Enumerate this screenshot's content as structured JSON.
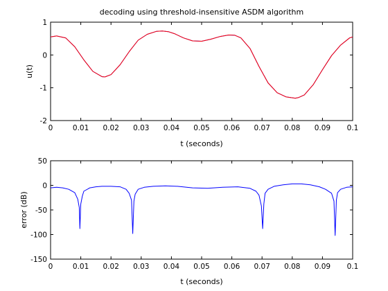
{
  "chart_data": [
    {
      "type": "line",
      "title": "decoding using threshold-insensitive ASDM algorithm",
      "xlabel": "t (seconds)",
      "ylabel": "u(t)",
      "xlim": [
        0,
        0.1
      ],
      "ylim": [
        -2,
        1
      ],
      "xticks": [
        "0",
        "0.01",
        "0.02",
        "0.03",
        "0.04",
        "0.05",
        "0.06",
        "0.07",
        "0.08",
        "0.09",
        "0.1"
      ],
      "yticks": [
        "-2",
        "-1",
        "0",
        "1"
      ],
      "grid": false,
      "series": [
        {
          "color": "#0000ff",
          "x": [
            0,
            0.002,
            0.005,
            0.008,
            0.011,
            0.014,
            0.017,
            0.018,
            0.02,
            0.023,
            0.026,
            0.029,
            0.032,
            0.035,
            0.037,
            0.039,
            0.041,
            0.044,
            0.047,
            0.05,
            0.053,
            0.056,
            0.059,
            0.061,
            0.063,
            0.066,
            0.069,
            0.072,
            0.075,
            0.078,
            0.081,
            0.082,
            0.084,
            0.087,
            0.09,
            0.093,
            0.096,
            0.099,
            0.1
          ],
          "y": [
            0.55,
            0.58,
            0.52,
            0.25,
            -0.15,
            -0.5,
            -0.66,
            -0.67,
            -0.6,
            -0.3,
            0.1,
            0.45,
            0.63,
            0.72,
            0.73,
            0.71,
            0.65,
            0.52,
            0.43,
            0.42,
            0.48,
            0.56,
            0.61,
            0.6,
            0.52,
            0.2,
            -0.35,
            -0.85,
            -1.15,
            -1.28,
            -1.32,
            -1.3,
            -1.22,
            -0.9,
            -0.45,
            -0.02,
            0.3,
            0.52,
            0.55
          ]
        },
        {
          "color": "#ff0000",
          "x": [
            0,
            0.002,
            0.005,
            0.008,
            0.011,
            0.014,
            0.017,
            0.018,
            0.02,
            0.023,
            0.026,
            0.029,
            0.032,
            0.035,
            0.037,
            0.039,
            0.041,
            0.044,
            0.047,
            0.05,
            0.053,
            0.056,
            0.059,
            0.061,
            0.063,
            0.066,
            0.069,
            0.072,
            0.075,
            0.078,
            0.081,
            0.082,
            0.084,
            0.087,
            0.09,
            0.093,
            0.096,
            0.099,
            0.1
          ],
          "y": [
            0.55,
            0.58,
            0.52,
            0.25,
            -0.15,
            -0.5,
            -0.66,
            -0.67,
            -0.6,
            -0.3,
            0.1,
            0.45,
            0.63,
            0.72,
            0.73,
            0.71,
            0.65,
            0.52,
            0.43,
            0.42,
            0.48,
            0.56,
            0.61,
            0.6,
            0.52,
            0.2,
            -0.35,
            -0.85,
            -1.15,
            -1.28,
            -1.32,
            -1.3,
            -1.22,
            -0.9,
            -0.45,
            -0.02,
            0.3,
            0.52,
            0.55
          ]
        }
      ]
    },
    {
      "type": "line",
      "title": "",
      "xlabel": "t (seconds)",
      "ylabel": "error (dB)",
      "xlim": [
        0,
        0.1
      ],
      "ylim": [
        -150,
        50
      ],
      "xticks": [
        "0",
        "0.01",
        "0.02",
        "0.03",
        "0.04",
        "0.05",
        "0.06",
        "0.07",
        "0.08",
        "0.09",
        "0.1"
      ],
      "yticks": [
        "-150",
        "-100",
        "-50",
        "0",
        "50"
      ],
      "grid": false,
      "series": [
        {
          "color": "#0000ff",
          "x": [
            0,
            0.002,
            0.004,
            0.006,
            0.008,
            0.009,
            0.0095,
            0.0097,
            0.01,
            0.0105,
            0.011,
            0.013,
            0.015,
            0.017,
            0.02,
            0.023,
            0.025,
            0.026,
            0.0268,
            0.0272,
            0.0276,
            0.028,
            0.029,
            0.031,
            0.034,
            0.038,
            0.042,
            0.047,
            0.052,
            0.057,
            0.062,
            0.066,
            0.068,
            0.069,
            0.0698,
            0.0702,
            0.0706,
            0.071,
            0.072,
            0.074,
            0.077,
            0.08,
            0.083,
            0.086,
            0.089,
            0.091,
            0.093,
            0.0938,
            0.0942,
            0.0946,
            0.095,
            0.096,
            0.098,
            0.1
          ],
          "y": [
            -5,
            -4,
            -5,
            -8,
            -15,
            -28,
            -45,
            -88,
            -38,
            -22,
            -12,
            -5,
            -3,
            -2,
            -2,
            -3,
            -8,
            -16,
            -30,
            -98,
            -32,
            -18,
            -8,
            -4,
            -2,
            -1,
            -2,
            -5,
            -6,
            -4,
            -3,
            -6,
            -12,
            -20,
            -42,
            -88,
            -38,
            -16,
            -8,
            -2,
            1,
            3,
            3,
            1,
            -3,
            -8,
            -16,
            -32,
            -102,
            -30,
            -15,
            -8,
            -4,
            -3
          ]
        }
      ]
    }
  ]
}
